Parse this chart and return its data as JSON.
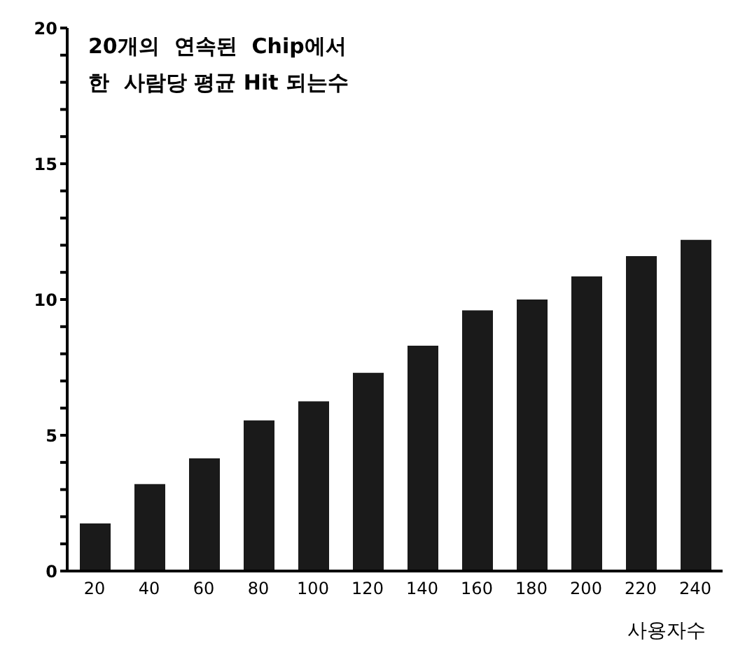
{
  "chart_data": {
    "type": "bar",
    "title": "20개의  연속된  Chip에서\n한  사람당 평균 Hit 되는수",
    "xlabel": "사용자수",
    "categories": [
      "20",
      "40",
      "60",
      "80",
      "100",
      "120",
      "140",
      "160",
      "180",
      "200",
      "220",
      "240"
    ],
    "values": [
      1.75,
      3.2,
      4.15,
      5.55,
      6.25,
      7.3,
      8.3,
      9.6,
      10,
      10.85,
      11.6,
      12.2
    ],
    "color": "#1a1a1a",
    "ylim": [
      0,
      20
    ],
    "yticks": [
      0,
      {
        "value": 1,
        "label": null
      },
      {
        "value": 2,
        "label": null
      },
      {
        "value": 3,
        "label": null
      },
      {
        "value": 4,
        "label": null
      },
      5,
      {
        "value": 6,
        "label": null
      },
      {
        "value": 7,
        "label": null
      },
      {
        "value": 8,
        "label": null
      },
      {
        "value": 9,
        "label": null
      },
      10,
      {
        "value": 11,
        "label": null
      },
      {
        "value": 12,
        "label": null
      },
      {
        "value": 13,
        "label": null
      },
      {
        "value": 14,
        "label": null
      },
      15,
      {
        "value": 16,
        "label": null
      },
      {
        "value": 17,
        "label": null
      },
      {
        "value": 18,
        "label": null
      },
      {
        "value": 19,
        "label": null
      },
      20
    ],
    "grid": false,
    "legend": false
  }
}
